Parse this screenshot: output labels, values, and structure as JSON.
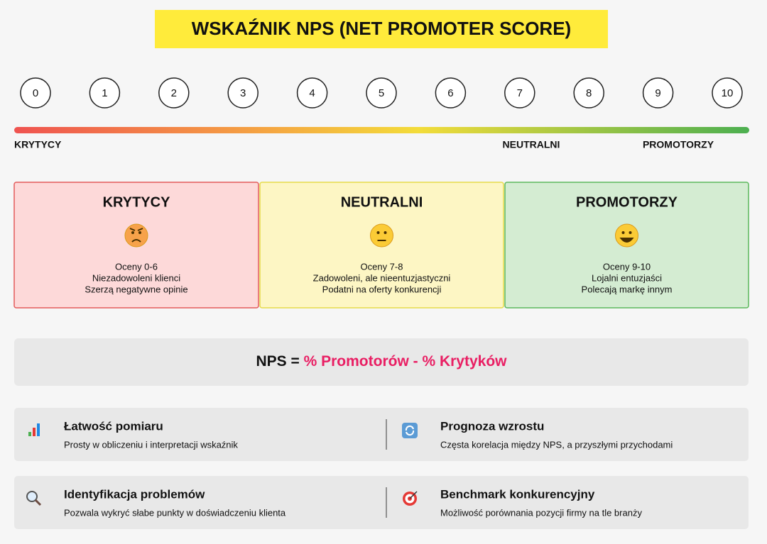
{
  "title": "WSKAŹNIK NPS (NET PROMOTER SCORE)",
  "scale": {
    "points": [
      "0",
      "1",
      "2",
      "3",
      "4",
      "5",
      "6",
      "7",
      "8",
      "9",
      "10"
    ],
    "labels": [
      "KRYTYCY",
      "NEUTRALNI",
      "PROMOTORZY"
    ]
  },
  "segments": [
    {
      "title": "KRYTYCY",
      "lines": [
        "Oceny 0-6",
        "Niezadowoleni klienci",
        "Szerzą negatywne opinie"
      ]
    },
    {
      "title": "NEUTRALNI",
      "lines": [
        "Oceny 7-8",
        "Zadowoleni, ale nieentuzjastyczni",
        "Podatni na oferty konkurencji"
      ]
    },
    {
      "title": "PROMOTORZY",
      "lines": [
        "Oceny 9-10",
        "Lojalni entuzjaści",
        "Polecają markę innym"
      ]
    }
  ],
  "formula": {
    "lhs": "NPS =",
    "rhs": "% Promotorów - % Krytyków"
  },
  "benefits": [
    {
      "title": "Łatwość pomiaru",
      "description": "Prosty w obliczeniu i interpretacji wskaźnik"
    },
    {
      "title": "Prognoza wzrostu",
      "description": "Częsta korelacja między NPS, a przyszłymi przychodami"
    },
    {
      "title": "Identyfikacja problemów",
      "description": "Pozwala wykryć słabe punkty w doświadczeniu klienta"
    },
    {
      "title": "Benchmark konkurencyjny",
      "description": "Możliwość porównania pozycji firmy na tle branży"
    }
  ]
}
